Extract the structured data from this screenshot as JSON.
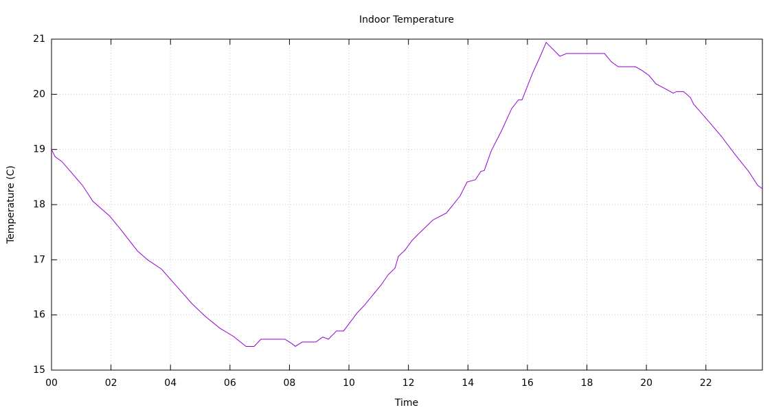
{
  "chart_data": {
    "type": "line",
    "title": "Indoor Temperature",
    "x_label": "Time",
    "y_label": "Temperature (C)",
    "x": [
      0,
      0.12,
      0.35,
      1.04,
      1.39,
      1.96,
      2.31,
      2.89,
      3.23,
      3.7,
      4.27,
      4.73,
      5.2,
      5.66,
      6.12,
      6.35,
      6.54,
      6.81,
      7.04,
      7.85,
      8.08,
      8.2,
      8.43,
      8.89,
      9.12,
      9.31,
      9.58,
      9.82,
      10.28,
      10.51,
      11.09,
      11.32,
      11.55,
      11.66,
      11.89,
      12.12,
      12.36,
      12.82,
      13.28,
      13.74,
      13.97,
      14.25,
      14.43,
      14.55,
      14.78,
      15.13,
      15.47,
      15.7,
      15.82,
      16.17,
      16.4,
      16.63,
      17.09,
      17.32,
      18.59,
      18.82,
      19.05,
      19.63,
      19.86,
      20.09,
      20.32,
      20.67,
      20.9,
      21.02,
      21.25,
      21.48,
      21.59,
      22.06,
      22.52,
      22.98,
      23.44,
      23.74,
      23.9
    ],
    "series": [
      {
        "name": "Indoor Temperature",
        "color": "#9400d3",
        "values": [
          19.0,
          18.87,
          18.78,
          18.35,
          18.06,
          17.79,
          17.56,
          17.16,
          17.0,
          16.83,
          16.48,
          16.2,
          15.96,
          15.76,
          15.61,
          15.51,
          15.43,
          15.43,
          15.56,
          15.56,
          15.48,
          15.43,
          15.51,
          15.51,
          15.6,
          15.56,
          15.71,
          15.71,
          16.04,
          16.17,
          16.55,
          16.73,
          16.85,
          17.06,
          17.18,
          17.35,
          17.48,
          17.72,
          17.85,
          18.16,
          18.41,
          18.45,
          18.6,
          18.62,
          18.97,
          19.34,
          19.74,
          19.9,
          19.9,
          20.38,
          20.65,
          20.94,
          20.69,
          20.74,
          20.74,
          20.59,
          20.5,
          20.5,
          20.43,
          20.34,
          20.19,
          20.09,
          20.02,
          20.05,
          20.05,
          19.94,
          19.82,
          19.53,
          19.24,
          18.91,
          18.6,
          18.35,
          18.29
        ]
      }
    ],
    "xlim": [
      0,
      23.9
    ],
    "xticks": [
      {
        "value": 0,
        "label": "00"
      },
      {
        "value": 2,
        "label": "02"
      },
      {
        "value": 4,
        "label": "04"
      },
      {
        "value": 6,
        "label": "06"
      },
      {
        "value": 8,
        "label": "08"
      },
      10,
      12,
      14,
      16,
      18,
      20,
      22
    ],
    "ylim": [
      15,
      21
    ],
    "yticks": [
      15,
      16,
      17,
      18,
      19,
      20,
      21
    ],
    "grid": true
  }
}
